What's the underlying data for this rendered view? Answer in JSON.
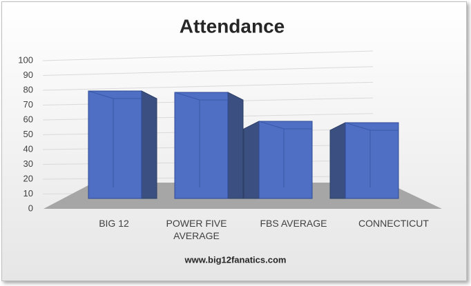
{
  "chart_data": {
    "type": "bar",
    "title": "Attendance",
    "categories": [
      "BIG 12",
      "POWER FIVE AVERAGE",
      "FBS AVERAGE",
      "CONNECTICUT"
    ],
    "values": [
      78,
      77,
      56,
      55
    ],
    "color": "#4f6fc4",
    "ylim": [
      0,
      100
    ],
    "yticks": [
      0,
      10,
      20,
      30,
      40,
      50,
      60,
      70,
      80,
      90,
      100
    ],
    "grid": true,
    "footer": "www.big12fanatics.com"
  }
}
